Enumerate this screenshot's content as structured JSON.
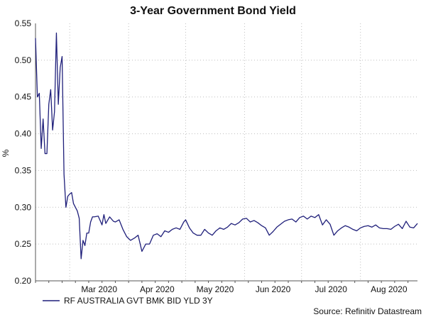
{
  "colors": {
    "series": "#1f1f7a",
    "axis": "#555555",
    "grid": "#bfbfbf"
  },
  "chart_data": {
    "type": "line",
    "title": "3-Year Government Bond Yield",
    "ylabel": "%",
    "xlabel": "",
    "ylim": [
      0.2,
      0.55
    ],
    "yticks": [
      "0.20",
      "0.25",
      "0.30",
      "0.35",
      "0.40",
      "0.45",
      "0.50",
      "0.55"
    ],
    "xlim": [
      "2020-02-12",
      "2020-08-31"
    ],
    "xticks": [
      {
        "label": "Mar 2020",
        "date": "2020-03-01"
      },
      {
        "label": "Apr 2020",
        "date": "2020-04-01"
      },
      {
        "label": "May 2020",
        "date": "2020-05-01"
      },
      {
        "label": "Jun 2020",
        "date": "2020-06-01"
      },
      {
        "label": "Jul 2020",
        "date": "2020-07-01"
      },
      {
        "label": "Aug 2020",
        "date": "2020-08-01"
      }
    ],
    "grid": true,
    "legend_position": "bottom-left",
    "series": [
      {
        "name": "RF AUSTRALIA GVT BMK BID YLD 3Y",
        "x": [
          "2020-02-12",
          "2020-02-13",
          "2020-02-14",
          "2020-02-15",
          "2020-02-16",
          "2020-02-17",
          "2020-02-18",
          "2020-02-19",
          "2020-02-20",
          "2020-02-21",
          "2020-02-22",
          "2020-02-23",
          "2020-02-24",
          "2020-02-25",
          "2020-02-26",
          "2020-02-27",
          "2020-02-28",
          "2020-02-29",
          "2020-03-01",
          "2020-03-02",
          "2020-03-03",
          "2020-03-04",
          "2020-03-05",
          "2020-03-06",
          "2020-03-07",
          "2020-03-08",
          "2020-03-09",
          "2020-03-10",
          "2020-03-11",
          "2020-03-12",
          "2020-03-13",
          "2020-03-14",
          "2020-03-16",
          "2020-03-18",
          "2020-03-19",
          "2020-03-20",
          "2020-03-22",
          "2020-03-24",
          "2020-03-25",
          "2020-03-27",
          "2020-03-29",
          "2020-03-31",
          "2020-04-02",
          "2020-04-04",
          "2020-04-06",
          "2020-04-08",
          "2020-04-10",
          "2020-04-12",
          "2020-04-14",
          "2020-04-16",
          "2020-04-18",
          "2020-04-20",
          "2020-04-22",
          "2020-04-24",
          "2020-04-26",
          "2020-04-28",
          "2020-04-30",
          "2020-05-01",
          "2020-05-03",
          "2020-05-05",
          "2020-05-07",
          "2020-05-09",
          "2020-05-11",
          "2020-05-13",
          "2020-05-15",
          "2020-05-17",
          "2020-05-19",
          "2020-05-21",
          "2020-05-23",
          "2020-05-25",
          "2020-05-27",
          "2020-05-29",
          "2020-05-31",
          "2020-06-02",
          "2020-06-04",
          "2020-06-06",
          "2020-06-08",
          "2020-06-10",
          "2020-06-12",
          "2020-06-14",
          "2020-06-16",
          "2020-06-18",
          "2020-06-20",
          "2020-06-22",
          "2020-06-24",
          "2020-06-26",
          "2020-06-28",
          "2020-06-30",
          "2020-07-02",
          "2020-07-04",
          "2020-07-06",
          "2020-07-08",
          "2020-07-10",
          "2020-07-12",
          "2020-07-14",
          "2020-07-16",
          "2020-07-18",
          "2020-07-20",
          "2020-07-22",
          "2020-07-24",
          "2020-07-26",
          "2020-07-28",
          "2020-07-30",
          "2020-08-01",
          "2020-08-03",
          "2020-08-05",
          "2020-08-07",
          "2020-08-09",
          "2020-08-11",
          "2020-08-13",
          "2020-08-15",
          "2020-08-17",
          "2020-08-19",
          "2020-08-21",
          "2020-08-23",
          "2020-08-25",
          "2020-08-27",
          "2020-08-29",
          "2020-08-31"
        ],
        "y": [
          0.53,
          0.45,
          0.455,
          0.38,
          0.42,
          0.373,
          0.373,
          0.44,
          0.46,
          0.405,
          0.43,
          0.537,
          0.44,
          0.49,
          0.505,
          0.345,
          0.3,
          0.315,
          0.318,
          0.32,
          0.305,
          0.3,
          0.295,
          0.285,
          0.23,
          0.255,
          0.248,
          0.265,
          0.265,
          0.28,
          0.287,
          0.287,
          0.288,
          0.276,
          0.29,
          0.278,
          0.287,
          0.281,
          0.28,
          0.283,
          0.27,
          0.26,
          0.255,
          0.258,
          0.262,
          0.24,
          0.25,
          0.25,
          0.262,
          0.264,
          0.26,
          0.268,
          0.266,
          0.27,
          0.272,
          0.27,
          0.28,
          0.283,
          0.272,
          0.265,
          0.262,
          0.262,
          0.27,
          0.265,
          0.262,
          0.268,
          0.272,
          0.27,
          0.273,
          0.278,
          0.276,
          0.279,
          0.284,
          0.285,
          0.28,
          0.282,
          0.279,
          0.275,
          0.272,
          0.262,
          0.267,
          0.273,
          0.277,
          0.281,
          0.283,
          0.284,
          0.28,
          0.286,
          0.288,
          0.284,
          0.288,
          0.286,
          0.29,
          0.276,
          0.283,
          0.277,
          0.262,
          0.268,
          0.272,
          0.275,
          0.273,
          0.27,
          0.268,
          0.272,
          0.274,
          0.275,
          0.273,
          0.276,
          0.272,
          0.271,
          0.271,
          0.27,
          0.274,
          0.277,
          0.271,
          0.281,
          0.273,
          0.272,
          0.278
        ]
      }
    ]
  },
  "footer": {
    "source": "Source: Refinitiv Datastream"
  }
}
